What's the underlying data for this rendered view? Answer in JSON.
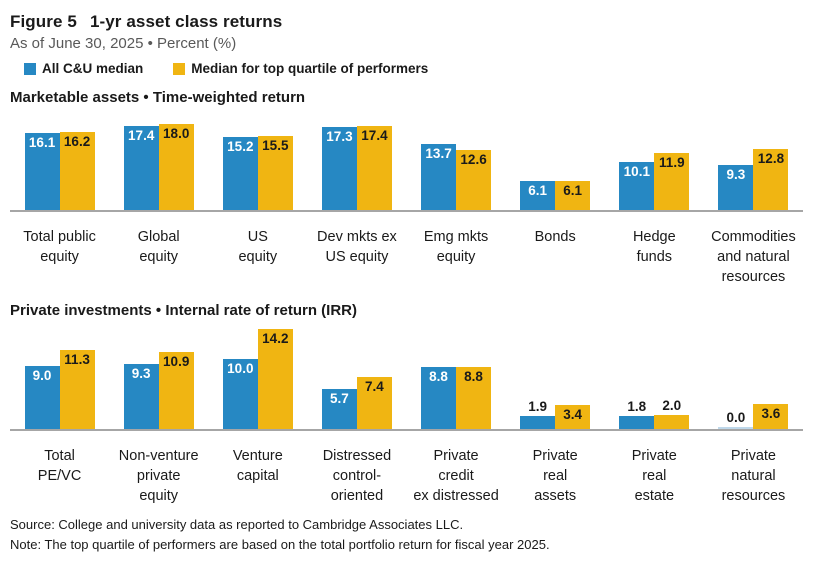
{
  "header": {
    "figure_label": "Figure 5",
    "title": "1-yr asset class returns",
    "subtitle": "As of June 30, 2025 • Percent (%)"
  },
  "legend": {
    "items": [
      {
        "label": "All C&U median",
        "swatch": "blue-square-swatch"
      },
      {
        "label": "Median for top quartile of performers",
        "swatch": "yellow-square-swatch"
      }
    ]
  },
  "colors": {
    "all_cu_median": "#2688C3",
    "top_quartile": "#F0B512",
    "axis_line": "#A6A6A6",
    "zero_bar": "#BFD8EA",
    "subtitle_gray": "#595959"
  },
  "chart_data": [
    {
      "type": "bar",
      "title": "Marketable assets • Time-weighted return",
      "categories": [
        "Total public\nequity",
        "Global\nequity",
        "US\nequity",
        "Dev mkts ex\nUS equity",
        "Emg mkts\nequity",
        "Bonds",
        "Hedge\nfunds",
        "Commodities\nand natural\nresources"
      ],
      "series": [
        {
          "name": "All C&U median",
          "values": [
            16.1,
            17.4,
            15.2,
            17.3,
            13.7,
            6.1,
            10.1,
            9.3
          ]
        },
        {
          "name": "Median for top quartile of performers",
          "values": [
            16.2,
            18.0,
            15.5,
            17.4,
            12.6,
            6.1,
            11.9,
            12.8
          ]
        }
      ],
      "ylabel": "Percent (%)",
      "ylim": [
        0,
        20
      ],
      "grid": false,
      "value_labels": true
    },
    {
      "type": "bar",
      "title": "Private investments • Internal rate of return (IRR)",
      "categories": [
        "Total\nPE/VC",
        "Non-venture\nprivate\nequity",
        "Venture\ncapital",
        "Distressed\ncontrol-\noriented",
        "Private\ncredit\nex distressed",
        "Private\nreal\nassets",
        "Private\nreal\nestate",
        "Private\nnatural\nresources"
      ],
      "series": [
        {
          "name": "All C&U median",
          "values": [
            9.0,
            9.3,
            10.0,
            5.7,
            8.8,
            1.9,
            1.8,
            0.0
          ]
        },
        {
          "name": "Median for top quartile of performers",
          "values": [
            11.3,
            10.9,
            14.2,
            7.4,
            8.8,
            3.4,
            2.0,
            3.6
          ]
        }
      ],
      "ylabel": "Percent (%)",
      "ylim": [
        0,
        14.5
      ],
      "grid": false,
      "value_labels": true
    }
  ],
  "footer": {
    "source": "Source: College and university data as reported to Cambridge Associates LLC.",
    "note": "Note: The top quartile of performers are based on the total portfolio return for fiscal year 2025."
  }
}
